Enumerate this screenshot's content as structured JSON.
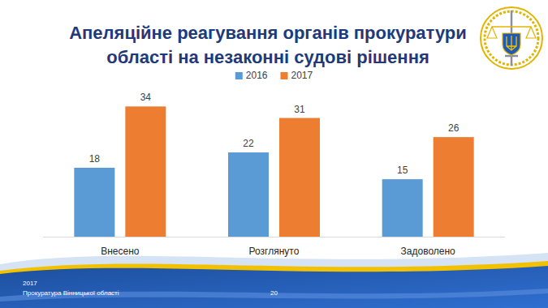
{
  "chart_data": {
    "type": "bar",
    "title": "Апеляційне реагування органів прокуратури області на незаконні судові рішення",
    "categories": [
      "Внесено",
      "Розглянуто",
      "Задоволено"
    ],
    "series": [
      {
        "name": "2016",
        "color": "#5b9bd5",
        "values": [
          18,
          22,
          15
        ]
      },
      {
        "name": "2017",
        "color": "#ed7d31",
        "values": [
          34,
          31,
          26
        ]
      }
    ],
    "ylim": [
      0,
      40
    ],
    "data_labels": true,
    "tick_labels": "x",
    "grid": false,
    "legend": "top"
  },
  "footer": {
    "year": "2017",
    "organization": "Прокуратура Вінницької області",
    "page": "20"
  }
}
